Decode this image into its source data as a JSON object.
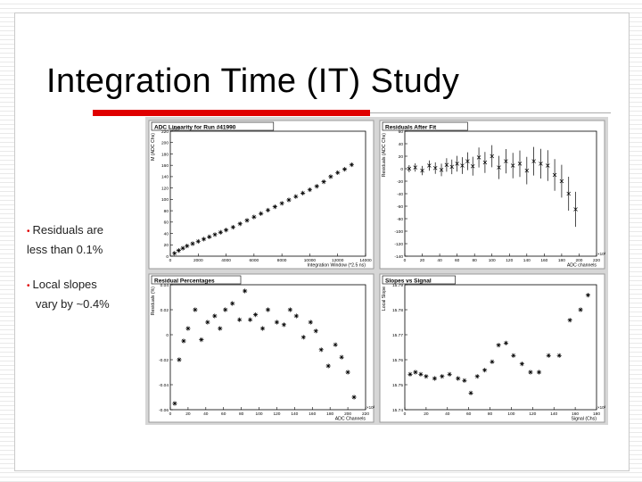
{
  "slide": {
    "title": "Integration Time (IT) Study",
    "bullets": [
      {
        "line1": "Residuals are",
        "line2": "less than 0.1%"
      },
      {
        "line1": "Local slopes",
        "line2": "vary by ~0.4%"
      }
    ],
    "colors": {
      "accent": "#e00000",
      "panel_background": "#d6d6d6"
    }
  },
  "chart_data": [
    {
      "type": "scatter",
      "title": "ADC Linearity for Run #41990",
      "xlabel": "Integration Window (*2.5 ns)",
      "ylabel": "M (ADC Chs)",
      "y_exponent": "×10³",
      "xlim": [
        0,
        14000
      ],
      "ylim": [
        0,
        220
      ],
      "xticks": [
        "0",
        "2000",
        "4000",
        "6000",
        "8000",
        "10000",
        "12000",
        "14000"
      ],
      "yticks": [
        "0",
        "20",
        "40",
        "60",
        "80",
        "100",
        "120",
        "140",
        "160",
        "180",
        "200",
        "220"
      ],
      "x": [
        300,
        600,
        900,
        1200,
        1600,
        2000,
        2400,
        2800,
        3200,
        3600,
        4000,
        4500,
        5000,
        5500,
        6000,
        6500,
        7000,
        7500,
        8000,
        8500,
        9000,
        9500,
        10000,
        10500,
        11000,
        11500,
        12000,
        12500,
        13000
      ],
      "y": [
        5,
        10,
        14,
        18,
        22,
        26,
        30,
        34,
        38,
        42,
        46,
        51,
        57,
        63,
        69,
        75,
        81,
        87,
        93,
        99,
        105,
        111,
        117,
        123,
        131,
        140,
        147,
        153,
        161
      ]
    },
    {
      "type": "scatter",
      "title": "Residuals After Fit",
      "xlabel": "ADC channels",
      "ylabel": "Residuals (ADC Chs)",
      "x_exponent": "×10³",
      "xlim": [
        0,
        220
      ],
      "ylim": [
        -140,
        60
      ],
      "xticks": [
        "0",
        "20",
        "40",
        "60",
        "80",
        "100",
        "120",
        "140",
        "160",
        "180",
        "200",
        "220"
      ],
      "yticks": [
        "-140",
        "-120",
        "-100",
        "-80",
        "-60",
        "-40",
        "-20",
        "0",
        "20",
        "40",
        "60"
      ],
      "x": [
        5,
        12,
        20,
        28,
        35,
        42,
        48,
        54,
        60,
        66,
        72,
        78,
        85,
        92,
        100,
        108,
        116,
        124,
        132,
        140,
        148,
        156,
        164,
        172,
        180,
        188,
        196
      ],
      "y": [
        0,
        2,
        -3,
        5,
        1,
        -2,
        6,
        3,
        8,
        5,
        12,
        4,
        18,
        10,
        20,
        2,
        12,
        5,
        8,
        -3,
        12,
        8,
        5,
        -10,
        -20,
        -40,
        -65
      ]
    },
    {
      "type": "scatter",
      "title": "Residual Percentages",
      "xlabel": "ADC Channels",
      "ylabel": "Residuals (%)",
      "x_exponent": "×10³",
      "xlim": [
        0,
        220
      ],
      "ylim": [
        -0.06,
        0.04
      ],
      "xticks": [
        "0",
        "20",
        "40",
        "60",
        "80",
        "100",
        "120",
        "140",
        "160",
        "180",
        "200",
        "220"
      ],
      "yticks": [
        "-0.06",
        "-0.04",
        "-0.02",
        "0",
        "0.02",
        "0.04"
      ],
      "x": [
        5,
        10,
        15,
        20,
        28,
        35,
        42,
        50,
        56,
        62,
        70,
        78,
        84,
        90,
        96,
        104,
        110,
        120,
        128,
        135,
        142,
        150,
        158,
        164,
        170,
        178,
        186,
        193,
        200,
        207
      ],
      "y": [
        -0.055,
        -0.02,
        -0.005,
        0.005,
        0.02,
        -0.004,
        0.01,
        0.015,
        0.005,
        0.02,
        0.025,
        0.012,
        0.035,
        0.012,
        0.016,
        0.005,
        0.02,
        0.01,
        0.008,
        0.02,
        0.015,
        -0.002,
        0.01,
        0.003,
        -0.012,
        -0.025,
        -0.008,
        -0.018,
        -0.03,
        -0.05
      ]
    },
    {
      "type": "scatter",
      "title": "Slopes vs Signal",
      "xlabel": "Signal (Chs)",
      "ylabel": "Local Slope",
      "x_exponent": "×10³",
      "xlim": [
        0,
        180
      ],
      "ylim": [
        15.74,
        15.8
      ],
      "xticks": [
        "0",
        "20",
        "40",
        "60",
        "80",
        "100",
        "120",
        "140",
        "160",
        "180"
      ],
      "yticks": [
        "15.74",
        "15.75",
        "15.76",
        "15.77",
        "15.78",
        "15.79"
      ],
      "x": [
        5,
        10,
        15,
        20,
        28,
        35,
        42,
        50,
        56,
        62,
        68,
        75,
        82,
        88,
        95,
        102,
        110,
        118,
        126,
        135,
        145,
        155,
        165,
        172
      ],
      "y": [
        15.757,
        15.758,
        15.757,
        15.756,
        15.755,
        15.756,
        15.757,
        15.755,
        15.754,
        15.748,
        15.756,
        15.759,
        15.763,
        15.771,
        15.772,
        15.766,
        15.762,
        15.758,
        15.758,
        15.766,
        15.766,
        15.783,
        15.788,
        15.795
      ]
    }
  ]
}
